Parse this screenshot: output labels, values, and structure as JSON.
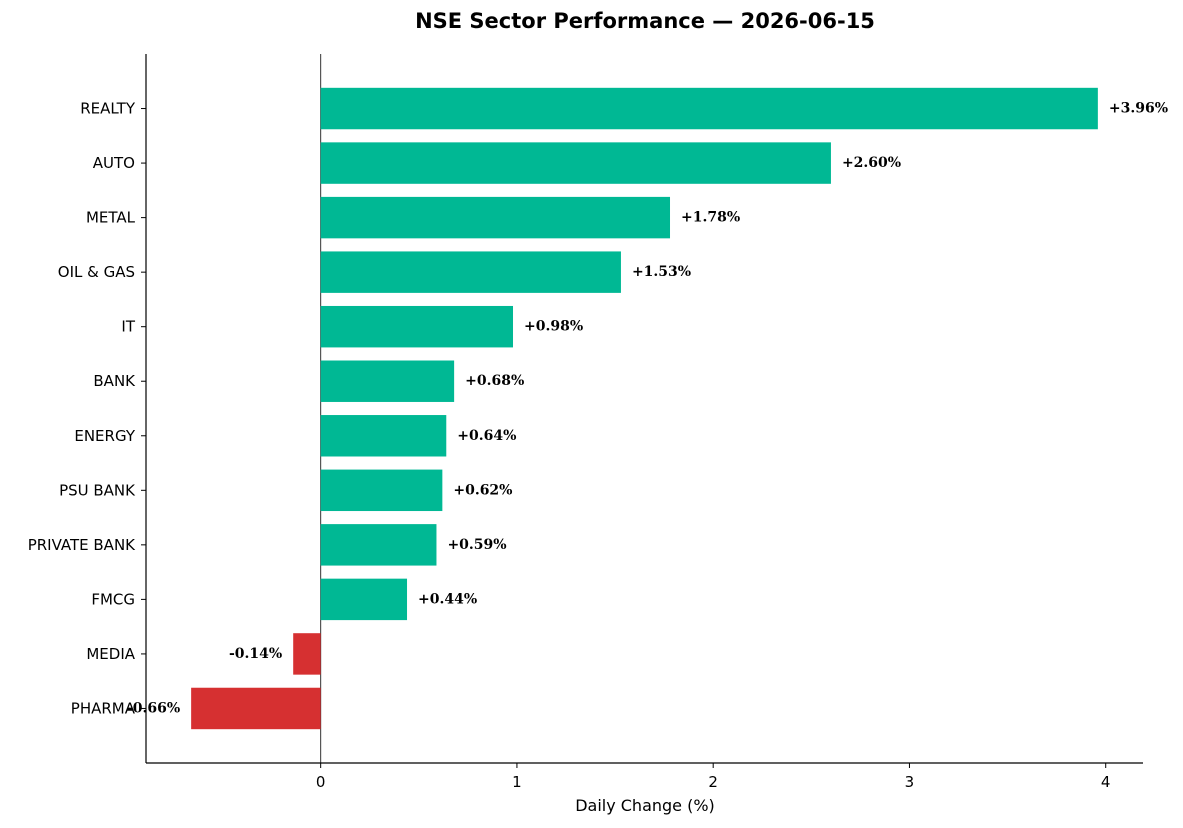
{
  "chart_data": {
    "type": "bar",
    "orientation": "horizontal",
    "title": "NSE Sector Performance — 2026-06-15",
    "xlabel": "Daily Change (%)",
    "ylabel": "",
    "categories": [
      "REALTY",
      "AUTO",
      "METAL",
      "OIL & GAS",
      "IT",
      "BANK",
      "ENERGY",
      "PSU BANK",
      "PRIVATE BANK",
      "FMCG",
      "MEDIA",
      "PHARMA"
    ],
    "values": [
      3.96,
      2.6,
      1.78,
      1.53,
      0.98,
      0.68,
      0.64,
      0.62,
      0.59,
      0.44,
      -0.14,
      -0.66
    ],
    "value_labels": [
      "+3.96%",
      "+2.60%",
      "+1.78%",
      "+1.53%",
      "+0.98%",
      "+0.68%",
      "+0.64%",
      "+0.62%",
      "+0.59%",
      "+0.44%",
      "-0.14%",
      "-0.66%"
    ],
    "xlim": [
      -0.89,
      4.19
    ],
    "xticks": [
      0,
      1,
      2,
      3,
      4
    ],
    "xtick_labels": [
      "0",
      "1",
      "2",
      "3",
      "4"
    ],
    "grid": false,
    "legend": "none",
    "colors": {
      "positive": "#00b894",
      "negative": "#d63031",
      "zero_line": "#333333"
    }
  }
}
